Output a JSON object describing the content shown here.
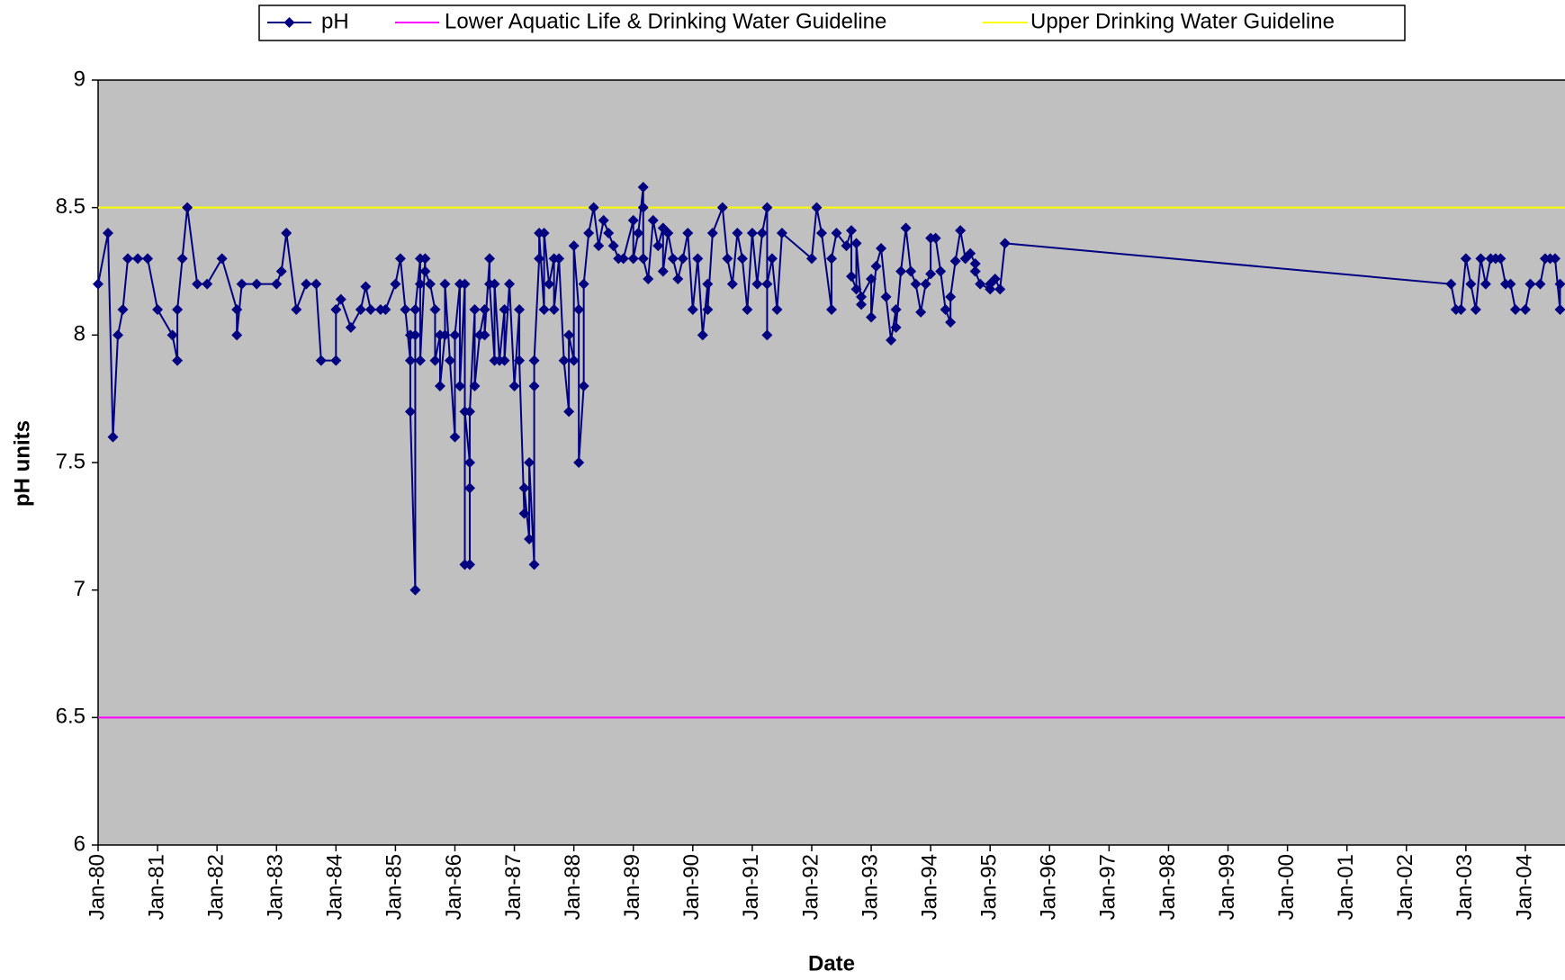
{
  "chart_data": {
    "type": "line",
    "xlabel": "Date",
    "ylabel": "pH units",
    "ylim": [
      6,
      9
    ],
    "yticks": [
      6,
      6.5,
      7,
      7.5,
      8,
      8.5,
      9
    ],
    "xlim": [
      "1980-01",
      "2004-09"
    ],
    "xticks": [
      {
        "value": "1980-01",
        "label": "Jan-80"
      },
      {
        "value": "1981-01",
        "label": "Jan-81"
      },
      {
        "value": "1982-01",
        "label": "Jan-82"
      },
      {
        "value": "1983-01",
        "label": "Jan-83"
      },
      {
        "value": "1984-01",
        "label": "Jan-84"
      },
      {
        "value": "1985-01",
        "label": "Jan-85"
      },
      {
        "value": "1986-01",
        "label": "Jan-86"
      },
      {
        "value": "1987-01",
        "label": "Jan-87"
      },
      {
        "value": "1988-01",
        "label": "Jan-88"
      },
      {
        "value": "1989-01",
        "label": "Jan-89"
      },
      {
        "value": "1990-01",
        "label": "Jan-90"
      },
      {
        "value": "1991-01",
        "label": "Jan-91"
      },
      {
        "value": "1992-01",
        "label": "Jan-92"
      },
      {
        "value": "1993-01",
        "label": "Jan-93"
      },
      {
        "value": "1994-01",
        "label": "Jan-94"
      },
      {
        "value": "1995-01",
        "label": "Jan-95"
      },
      {
        "value": "1996-01",
        "label": "Jan-96"
      },
      {
        "value": "1997-01",
        "label": "Jan-97"
      },
      {
        "value": "1998-01",
        "label": "Jan-98"
      },
      {
        "value": "1999-01",
        "label": "Jan-99"
      },
      {
        "value": "2000-01",
        "label": "Jan-00"
      },
      {
        "value": "2001-01",
        "label": "Jan-01"
      },
      {
        "value": "2002-01",
        "label": "Jan-02"
      },
      {
        "value": "2003-01",
        "label": "Jan-03"
      },
      {
        "value": "2004-01",
        "label": "Jan-04"
      }
    ],
    "plot_background": "#c0c0c0",
    "series": [
      {
        "name": "pH",
        "color": "#000080",
        "x": [
          "1980-01",
          "1980-03",
          "1980-04",
          "1980-05",
          "1980-06",
          "1980-07",
          "1980-09",
          "1980-11",
          "1981-01",
          "1981-04",
          "1981-05",
          "1981-05",
          "1981-06",
          "1981-07",
          "1981-09",
          "1981-11",
          "1982-02",
          "1982-05",
          "1982-05",
          "1982-06",
          "1982-09",
          "1983-01",
          "1983-02",
          "1983-03",
          "1983-05",
          "1983-07",
          "1983-09",
          "1983-10",
          "1984-01",
          "1984-01",
          "1984-02",
          "1984-04",
          "1984-06",
          "1984-07",
          "1984-08",
          "1984-10",
          "1984-11",
          "1985-01",
          "1985-02",
          "1985-03",
          "1985-04",
          "1985-04",
          "1985-04",
          "1985-05",
          "1985-05",
          "1985-05",
          "1985-06",
          "1985-06",
          "1985-06",
          "1985-07",
          "1985-07",
          "1985-08",
          "1985-09",
          "1985-09",
          "1985-10",
          "1985-10",
          "1985-11",
          "1985-11",
          "1985-12",
          "1986-01",
          "1986-01",
          "1986-02",
          "1986-02",
          "1986-03",
          "1986-03",
          "1986-03",
          "1986-04",
          "1986-04",
          "1986-04",
          "1986-04",
          "1986-05",
          "1986-05",
          "1986-06",
          "1986-07",
          "1986-07",
          "1986-08",
          "1986-08",
          "1986-09",
          "1986-09",
          "1986-10",
          "1986-11",
          "1986-11",
          "1986-12",
          "1987-01",
          "1987-02",
          "1987-02",
          "1987-03",
          "1987-03",
          "1987-04",
          "1987-04",
          "1987-05",
          "1987-05",
          "1987-05",
          "1987-06",
          "1987-06",
          "1987-07",
          "1987-07",
          "1987-08",
          "1987-09",
          "1987-09",
          "1987-10",
          "1987-11",
          "1987-12",
          "1987-12",
          "1988-01",
          "1988-01",
          "1988-02",
          "1988-02",
          "1988-03",
          "1988-03",
          "1988-04",
          "1988-05",
          "1988-06",
          "1988-07",
          "1988-08",
          "1988-09",
          "1988-10",
          "1988-11",
          "1989-01",
          "1989-01",
          "1989-02",
          "1989-03",
          "1989-03",
          "1989-03",
          "1989-04",
          "1989-05",
          "1989-06",
          "1989-07",
          "1989-07",
          "1989-08",
          "1989-09",
          "1989-10",
          "1989-11",
          "1989-12",
          "1990-01",
          "1990-02",
          "1990-03",
          "1990-04",
          "1990-04",
          "1990-05",
          "1990-07",
          "1990-08",
          "1990-09",
          "1990-10",
          "1990-11",
          "1990-12",
          "1991-01",
          "1991-02",
          "1991-03",
          "1991-04",
          "1991-04",
          "1991-04",
          "1991-05",
          "1991-06",
          "1991-07",
          "1992-01",
          "1992-02",
          "1992-03",
          "1992-05",
          "1992-05",
          "1992-06",
          "1992-08",
          "1992-09",
          "1992-09",
          "1992-10",
          "1992-10",
          "1992-11",
          "1992-11",
          "1993-01",
          "1993-01",
          "1993-02",
          "1993-03",
          "1993-04",
          "1993-05",
          "1993-06",
          "1993-06",
          "1993-07",
          "1993-08",
          "1993-09",
          "1993-10",
          "1993-11",
          "1993-12",
          "1994-01",
          "1994-01",
          "1994-02",
          "1994-03",
          "1994-04",
          "1994-05",
          "1994-05",
          "1994-06",
          "1994-07",
          "1994-08",
          "1994-09",
          "1994-10",
          "1994-10",
          "1994-11",
          "1995-01",
          "1995-01",
          "1995-02",
          "1995-03",
          "1995-04",
          "2002-10",
          "2002-11",
          "2002-12",
          "2003-01",
          "2003-02",
          "2003-03",
          "2003-04",
          "2003-05",
          "2003-06",
          "2003-07",
          "2003-08",
          "2003-09",
          "2003-10",
          "2003-11",
          "2004-01",
          "2004-02",
          "2004-04",
          "2004-05",
          "2004-06",
          "2004-07",
          "2004-08",
          "2004-08"
        ],
        "values": [
          8.2,
          8.4,
          7.6,
          8.0,
          8.1,
          8.3,
          8.3,
          8.3,
          8.1,
          8.0,
          7.9,
          8.1,
          8.3,
          8.5,
          8.2,
          8.2,
          8.3,
          8.1,
          8.0,
          8.2,
          8.2,
          8.2,
          8.25,
          8.4,
          8.1,
          8.2,
          8.2,
          7.9,
          7.9,
          8.1,
          8.14,
          8.03,
          8.1,
          8.19,
          8.1,
          8.1,
          8.1,
          8.2,
          8.3,
          8.1,
          7.9,
          8.0,
          7.7,
          7.0,
          8.0,
          8.1,
          8.3,
          8.2,
          7.9,
          8.3,
          8.25,
          8.2,
          8.1,
          7.9,
          8.0,
          7.8,
          8.0,
          8.2,
          7.9,
          7.6,
          8.0,
          8.2,
          7.8,
          8.2,
          7.1,
          7.7,
          7.5,
          7.4,
          7.1,
          7.7,
          8.1,
          7.8,
          8.0,
          8.1,
          8.0,
          8.3,
          8.2,
          7.9,
          8.2,
          7.9,
          8.1,
          7.9,
          8.2,
          7.8,
          8.1,
          7.9,
          7.3,
          7.4,
          7.2,
          7.5,
          7.1,
          7.8,
          7.9,
          8.3,
          8.4,
          8.1,
          8.4,
          8.2,
          8.3,
          8.1,
          8.3,
          7.9,
          7.7,
          8.0,
          7.9,
          8.35,
          8.1,
          7.5,
          7.8,
          8.2,
          8.4,
          8.5,
          8.35,
          8.45,
          8.4,
          8.35,
          8.3,
          8.3,
          8.45,
          8.3,
          8.4,
          8.58,
          8.5,
          8.3,
          8.22,
          8.45,
          8.35,
          8.42,
          8.25,
          8.4,
          8.3,
          8.22,
          8.3,
          8.4,
          8.1,
          8.3,
          8.0,
          8.2,
          8.1,
          8.4,
          8.5,
          8.3,
          8.2,
          8.4,
          8.3,
          8.1,
          8.4,
          8.2,
          8.4,
          8.5,
          8.0,
          8.2,
          8.3,
          8.1,
          8.4,
          8.3,
          8.5,
          8.4,
          8.1,
          8.3,
          8.4,
          8.35,
          8.41,
          8.23,
          8.18,
          8.36,
          8.12,
          8.15,
          8.22,
          8.07,
          8.27,
          8.34,
          8.15,
          7.98,
          8.1,
          8.03,
          8.25,
          8.42,
          8.25,
          8.2,
          8.09,
          8.2,
          8.24,
          8.38,
          8.38,
          8.25,
          8.1,
          8.05,
          8.15,
          8.29,
          8.41,
          8.3,
          8.32,
          8.28,
          8.25,
          8.2,
          8.18,
          8.2,
          8.22,
          8.18,
          8.36,
          8.2,
          8.1,
          8.1,
          8.3,
          8.2,
          8.1,
          8.3,
          8.2,
          8.3,
          8.3,
          8.3,
          8.2,
          8.2,
          8.1,
          8.1,
          8.2,
          8.2,
          8.3,
          8.3,
          8.3,
          8.1,
          8.2
        ]
      }
    ],
    "guidelines": [
      {
        "name": "Lower Aquatic Life & Drinking Water Guideline",
        "color": "#ff00ff",
        "value": 6.5
      },
      {
        "name": "Upper Drinking Water Guideline",
        "color": "#ffff00",
        "value": 8.5
      }
    ]
  }
}
